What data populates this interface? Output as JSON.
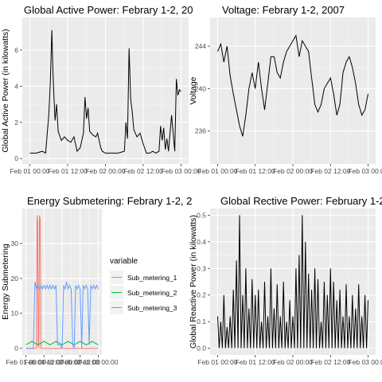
{
  "chart_data": [
    {
      "type": "line",
      "title": "Global Active Power: Febrary 1-2, 20",
      "xlabel": "",
      "ylabel": "Global Active Power (in kilowatts)",
      "x_ticks": [
        "Feb 01 00:00",
        "Feb 01 12:00",
        "Feb 02 00:00",
        "Feb 02 12:00",
        "Feb 03 00:00"
      ],
      "xlim_hours": [
        -2.4,
        50.4
      ],
      "y_ticks": [
        "0",
        "2",
        "4",
        "6"
      ],
      "ylim": [
        -0.3,
        7.8
      ],
      "grid": true,
      "series": [
        {
          "color": "#000000",
          "x_hours": [
            0,
            2,
            4,
            5,
            6,
            6.5,
            7,
            7.3,
            7.6,
            8,
            8.5,
            9,
            10,
            11,
            12,
            13,
            14,
            15,
            16,
            17,
            17.5,
            18,
            18.5,
            19,
            20,
            21,
            21.5,
            22,
            22.5,
            23,
            24,
            26,
            28,
            30,
            30.5,
            31,
            31.5,
            32,
            32.5,
            33,
            34,
            35,
            36,
            37,
            38,
            39,
            40,
            41,
            41.5,
            42,
            42.5,
            43,
            43.5,
            44,
            45,
            46,
            46.5,
            47,
            47.5,
            48
          ],
          "values": [
            0.3,
            0.3,
            0.4,
            0.3,
            2.4,
            4.2,
            7.1,
            5.0,
            3.6,
            2.1,
            3.0,
            1.5,
            1.0,
            1.2,
            1.0,
            0.9,
            1.2,
            0.4,
            0.6,
            1.4,
            3.4,
            2.2,
            2.8,
            1.5,
            1.3,
            1.2,
            1.4,
            1.0,
            0.6,
            0.4,
            0.3,
            0.3,
            0.3,
            0.4,
            2.0,
            1.1,
            6.1,
            3.3,
            2.6,
            1.6,
            1.2,
            1.4,
            0.8,
            0.3,
            0.3,
            0.4,
            0.3,
            0.4,
            1.8,
            1.0,
            1.7,
            0.5,
            1.1,
            0.4,
            2.4,
            0.4,
            4.4,
            3.5,
            3.8,
            3.7
          ]
        }
      ]
    },
    {
      "type": "line",
      "title": "Voltage: Febrary 1-2, 2007",
      "xlabel": "",
      "ylabel": "Voltage",
      "x_ticks": [
        "Feb 01 00:00",
        "Feb 01 12:00",
        "Feb 02 00:00",
        "Feb 02 12:00",
        "Feb 03 00:00"
      ],
      "xlim_hours": [
        -2.4,
        50.4
      ],
      "y_ticks": [
        "236",
        "240",
        "244"
      ],
      "ylim": [
        232.9,
        246.7
      ],
      "grid": true,
      "series": [
        {
          "color": "#000000",
          "x_hours": [
            0,
            1,
            2,
            3,
            4,
            5,
            6,
            7,
            8,
            9,
            10,
            11,
            12,
            13,
            14,
            15,
            16,
            17,
            18,
            19,
            20,
            21,
            22,
            23,
            24,
            25,
            26,
            27,
            28,
            29,
            30,
            31,
            32,
            33,
            34,
            35,
            36,
            37,
            38,
            39,
            40,
            41,
            42,
            43,
            44,
            45,
            46,
            47,
            48
          ],
          "values": [
            243.5,
            244.2,
            242.5,
            244.0,
            241.2,
            239.5,
            238.0,
            236.5,
            235.5,
            237.5,
            240.0,
            241.5,
            240.0,
            242.5,
            240.0,
            238.0,
            240.5,
            243.0,
            243.0,
            241.5,
            241.0,
            242.5,
            243.5,
            244.0,
            244.5,
            245.0,
            243.0,
            244.5,
            244.0,
            243.5,
            241.0,
            238.5,
            237.8,
            238.5,
            240.0,
            240.5,
            241.0,
            239.5,
            237.5,
            238.5,
            241.5,
            242.5,
            243.0,
            242.0,
            240.5,
            238.5,
            237.5,
            238.0,
            239.5
          ]
        }
      ]
    },
    {
      "type": "line",
      "title": "Energy Submetering: Febrary 1-2, 2",
      "xlabel": "",
      "ylabel": "Energy Submetering",
      "x_ticks": [
        "Feb 01 00:00",
        "Feb 01 12:00",
        "Feb 02 00:00",
        "Feb 02 12:00",
        "Feb 03 00:00"
      ],
      "xlim_hours": [
        -2.4,
        50.4
      ],
      "y_ticks": [
        "0",
        "10",
        "20",
        "30"
      ],
      "ylim": [
        -1.9,
        40.0
      ],
      "grid": true,
      "legend_title": "variable",
      "legend_position": "right",
      "series": [
        {
          "name": "Sub_metering_1",
          "color": "#F8766D",
          "x_hours": [
            0,
            7.0,
            7.4,
            7.8,
            8.2,
            8.6,
            9.0,
            9.5,
            10,
            48
          ],
          "values": [
            0,
            0,
            38,
            36,
            1,
            0,
            38,
            37,
            0,
            0
          ]
        },
        {
          "name": "Sub_metering_2",
          "color": "#00BA38",
          "x_hours": [
            0,
            4,
            8,
            12,
            16,
            20,
            24,
            28,
            32,
            36,
            40,
            44,
            48
          ],
          "values": [
            1,
            2,
            1,
            2,
            1,
            2,
            1,
            2,
            1,
            2,
            1,
            2,
            1
          ]
        },
        {
          "name": "Sub_metering_3",
          "color": "#619CFF",
          "x_hours": [
            0,
            1,
            2,
            3,
            4,
            5,
            6,
            7,
            8,
            9,
            10,
            11,
            12,
            13,
            14,
            15,
            16,
            17,
            18,
            19,
            20,
            21,
            22,
            23,
            24,
            25,
            26,
            27,
            28,
            29,
            30,
            31,
            32,
            33,
            34,
            35,
            36,
            37,
            38,
            39,
            40,
            41,
            42,
            43,
            44,
            45,
            46,
            47,
            48
          ],
          "values": [
            0,
            0,
            0,
            0,
            0,
            0,
            19,
            17,
            18,
            17,
            18,
            17,
            18,
            17,
            18,
            17,
            18,
            17,
            18,
            17,
            18,
            1,
            1,
            1,
            0,
            18,
            17,
            19,
            17,
            18,
            17,
            1,
            0,
            18,
            17,
            18,
            17,
            0,
            18,
            17,
            18,
            17,
            1,
            18,
            17,
            18,
            17,
            18,
            17
          ]
        }
      ]
    },
    {
      "type": "line",
      "title": "Global Rective Power: February 1-2,",
      "xlabel": "",
      "ylabel": "Global Reactive Power (in kilowatts)",
      "x_ticks": [
        "Feb 01 00:00",
        "Feb 01 12:00",
        "Feb 02 00:00",
        "Feb 02 12:00",
        "Feb 03 00:00"
      ],
      "xlim_hours": [
        -2.4,
        50.4
      ],
      "y_ticks": [
        "0.0",
        "0.1",
        "0.2",
        "0.3",
        "0.4",
        "0.5"
      ],
      "ylim": [
        -0.025,
        0.525
      ],
      "grid": true,
      "series": [
        {
          "color": "#000000",
          "x_hours": [
            0,
            0.5,
            1,
            1.5,
            2,
            2.5,
            3,
            3.5,
            4,
            4.5,
            5,
            5.5,
            6,
            6.5,
            7,
            7.5,
            8,
            8.5,
            9,
            9.5,
            10,
            10.5,
            11,
            11.5,
            12,
            12.5,
            13,
            13.5,
            14,
            14.5,
            15,
            15.5,
            16,
            16.5,
            17,
            17.5,
            18,
            18.5,
            19,
            19.5,
            20,
            20.5,
            21,
            21.5,
            22,
            22.5,
            23,
            23.5,
            24,
            24.5,
            25,
            25.5,
            26,
            26.5,
            27,
            27.5,
            28,
            28.5,
            29,
            29.5,
            30,
            30.5,
            31,
            31.5,
            32,
            32.5,
            33,
            33.5,
            34,
            34.5,
            35,
            35.5,
            36,
            36.5,
            37,
            37.5,
            38,
            38.5,
            39,
            39.5,
            40,
            40.5,
            41,
            41.5,
            42,
            42.5,
            43,
            43.5,
            44,
            44.5,
            45,
            45.5,
            46,
            46.5,
            47,
            47.5,
            48
          ],
          "values": [
            0.12,
            0,
            0.1,
            0,
            0.2,
            0,
            0.08,
            0,
            0.12,
            0,
            0.22,
            0,
            0.33,
            0,
            0.5,
            0,
            0.2,
            0,
            0.3,
            0,
            0.15,
            0,
            0.26,
            0,
            0.2,
            0,
            0.22,
            0,
            0.1,
            0,
            0.25,
            0,
            0.12,
            0,
            0.3,
            0,
            0.15,
            0,
            0.24,
            0,
            0.12,
            0,
            0.25,
            0,
            0.1,
            0,
            0.18,
            0,
            0.12,
            0,
            0.3,
            0,
            0.35,
            0,
            0.5,
            0,
            0.4,
            0,
            0.28,
            0,
            0.22,
            0,
            0.3,
            0,
            0.26,
            0,
            0.1,
            0,
            0.25,
            0,
            0.2,
            0,
            0.3,
            0,
            0.25,
            0,
            0.18,
            0,
            0.22,
            0,
            0.12,
            0,
            0.24,
            0,
            0.12,
            0,
            0.2,
            0,
            0.15,
            0,
            0.24,
            0,
            0.12,
            0,
            0.2,
            0,
            0.18
          ]
        }
      ]
    }
  ]
}
